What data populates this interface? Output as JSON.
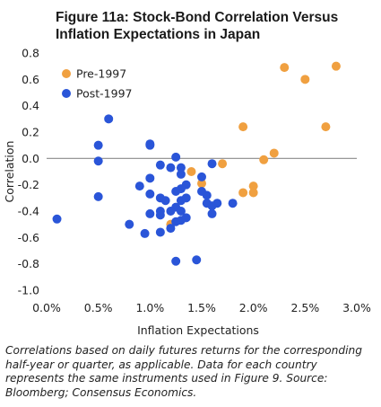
{
  "chart_data": {
    "type": "scatter",
    "title": "Figure 11a: Stock-Bond Correlation Versus Inflation Expectations in Japan",
    "xlabel": "Inflation Expectations",
    "ylabel": "Correlation",
    "xlim": [
      0,
      3.0
    ],
    "ylim": [
      -1.0,
      0.8
    ],
    "x_ticks": [
      0,
      0.5,
      1.0,
      1.5,
      2.0,
      2.5,
      3.0
    ],
    "x_tick_labels": [
      "0.0%",
      "0.5%",
      "1.0%",
      "1.5%",
      "2.0%",
      "2.5%",
      "3.0%"
    ],
    "y_ticks": [
      0.8,
      0.6,
      0.4,
      0.2,
      0.0,
      -0.2,
      -0.4,
      -0.6,
      -0.8,
      -1.0
    ],
    "y_tick_labels": [
      "0.8",
      "0.6",
      "0.4",
      "0.2",
      "0.0",
      "-0.2",
      "-0.4",
      "-0.6",
      "-0.8",
      "-1.0"
    ],
    "grid": false,
    "zero_line": true,
    "legend_position": "top-left",
    "series": [
      {
        "name": "Pre-1997",
        "color": "#f0a040",
        "points": [
          [
            2.8,
            0.7
          ],
          [
            2.3,
            0.69
          ],
          [
            2.5,
            0.6
          ],
          [
            2.7,
            0.24
          ],
          [
            1.9,
            0.24
          ],
          [
            2.2,
            0.04
          ],
          [
            2.1,
            -0.01
          ],
          [
            1.7,
            -0.04
          ],
          [
            1.4,
            -0.1
          ],
          [
            1.5,
            -0.19
          ],
          [
            2.0,
            -0.21
          ],
          [
            1.9,
            -0.26
          ],
          [
            2.0,
            -0.26
          ],
          [
            1.2,
            -0.5
          ]
        ]
      },
      {
        "name": "Post-1997",
        "color": "#2a55d8",
        "points": [
          [
            0.6,
            0.3
          ],
          [
            0.5,
            0.1
          ],
          [
            1.0,
            0.11
          ],
          [
            1.0,
            0.1
          ],
          [
            0.5,
            -0.02
          ],
          [
            1.25,
            0.01
          ],
          [
            1.2,
            -0.07
          ],
          [
            1.6,
            -0.04
          ],
          [
            1.1,
            -0.05
          ],
          [
            1.3,
            -0.07
          ],
          [
            1.3,
            -0.12
          ],
          [
            1.0,
            -0.15
          ],
          [
            1.5,
            -0.14
          ],
          [
            0.9,
            -0.21
          ],
          [
            1.35,
            -0.2
          ],
          [
            1.3,
            -0.23
          ],
          [
            1.25,
            -0.25
          ],
          [
            1.5,
            -0.25
          ],
          [
            1.0,
            -0.27
          ],
          [
            0.5,
            -0.29
          ],
          [
            1.1,
            -0.3
          ],
          [
            1.35,
            -0.3
          ],
          [
            1.55,
            -0.28
          ],
          [
            1.15,
            -0.32
          ],
          [
            1.3,
            -0.32
          ],
          [
            1.55,
            -0.34
          ],
          [
            1.65,
            -0.34
          ],
          [
            1.8,
            -0.34
          ],
          [
            1.25,
            -0.37
          ],
          [
            1.6,
            -0.36
          ],
          [
            1.1,
            -0.4
          ],
          [
            1.2,
            -0.4
          ],
          [
            1.3,
            -0.4
          ],
          [
            1.0,
            -0.42
          ],
          [
            1.1,
            -0.43
          ],
          [
            1.6,
            -0.42
          ],
          [
            1.35,
            -0.45
          ],
          [
            0.1,
            -0.46
          ],
          [
            1.3,
            -0.47
          ],
          [
            1.25,
            -0.48
          ],
          [
            0.8,
            -0.5
          ],
          [
            1.2,
            -0.53
          ],
          [
            1.1,
            -0.56
          ],
          [
            0.95,
            -0.57
          ],
          [
            1.45,
            -0.77
          ],
          [
            1.25,
            -0.78
          ]
        ]
      }
    ]
  },
  "caption": "Correlations based on daily futures returns for the corresponding half-year or quarter, as applicable. Data for each country represents the same instruments used in Figure 9. Source: Bloomberg; Consensus Economics."
}
